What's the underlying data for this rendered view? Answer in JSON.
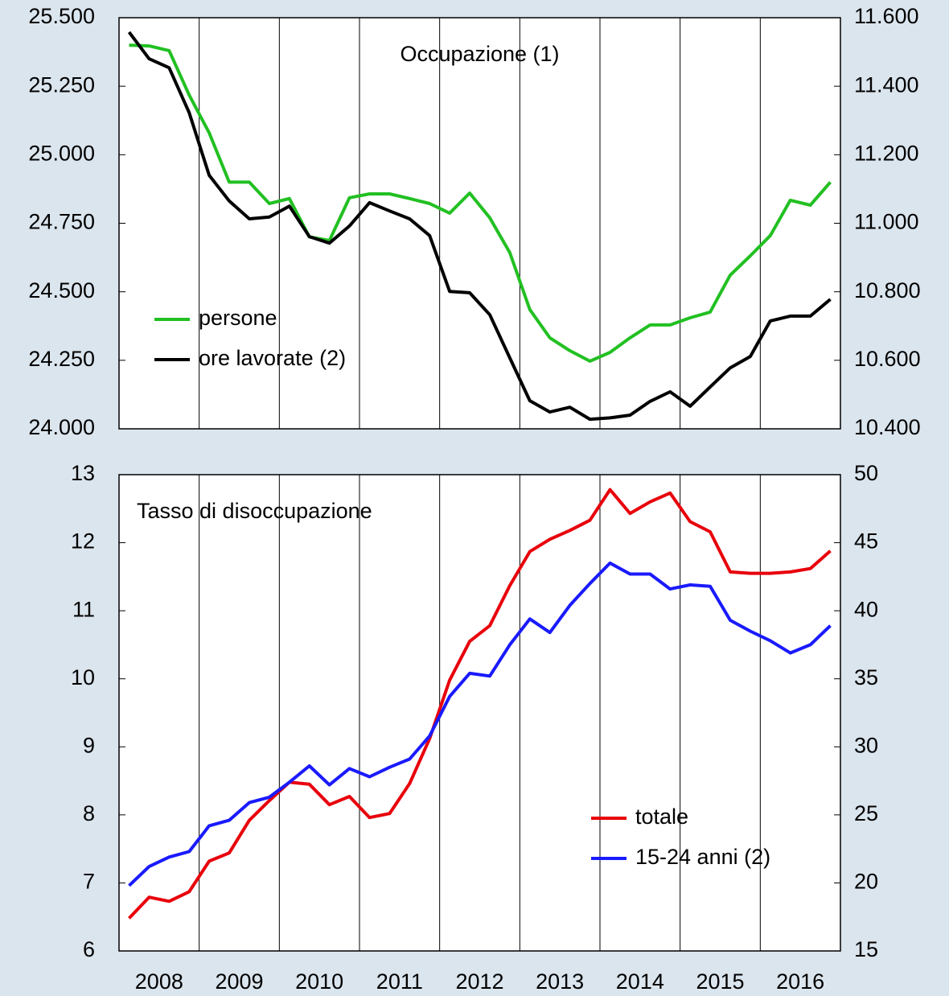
{
  "chart_data": [
    {
      "type": "line",
      "title": "Occupazione (1)",
      "title_loc": "center",
      "legend_loc": "lower left",
      "x": [
        2008.125,
        2008.375,
        2008.625,
        2008.875,
        2009.125,
        2009.375,
        2009.625,
        2009.875,
        2010.125,
        2010.375,
        2010.625,
        2010.875,
        2011.125,
        2011.375,
        2011.625,
        2011.875,
        2012.125,
        2012.375,
        2012.625,
        2012.875,
        2013.125,
        2013.375,
        2013.625,
        2013.875,
        2014.125,
        2014.375,
        2014.625,
        2014.875,
        2015.125,
        2015.375,
        2015.625,
        2015.875,
        2016.125,
        2016.375,
        2016.625,
        2016.875
      ],
      "xlim": [
        2008,
        2017
      ],
      "xgrid": [
        2009,
        2010,
        2011,
        2012,
        2013,
        2014,
        2015,
        2016
      ],
      "ylim": [
        24000,
        25500
      ],
      "yticks": [
        {
          "value": 24000,
          "label": "24.000"
        },
        {
          "value": 24250,
          "label": "24.250"
        },
        {
          "value": 24500,
          "label": "24.500"
        },
        {
          "value": 24750,
          "label": "24.750"
        },
        {
          "value": 25000,
          "label": "25.000"
        },
        {
          "value": 25250,
          "label": "25.250"
        },
        {
          "value": 25500,
          "label": "25.500"
        }
      ],
      "y2lim": [
        10400,
        11600
      ],
      "y2ticks": [
        {
          "value": 10400,
          "label": "10.400"
        },
        {
          "value": 10600,
          "label": "10.600"
        },
        {
          "value": 10800,
          "label": "10.800"
        },
        {
          "value": 11000,
          "label": "11.000"
        },
        {
          "value": 11200,
          "label": "11.200"
        },
        {
          "value": 11400,
          "label": "11.400"
        },
        {
          "value": 11600,
          "label": "11.600"
        }
      ],
      "series": [
        {
          "name": "persone",
          "color": "#22c022",
          "values": [
            25400,
            25397,
            25380,
            25218,
            25080,
            24900,
            24900,
            24822,
            24840,
            24700,
            24687,
            24843,
            24857,
            24857,
            24840,
            24822,
            24787,
            24860,
            24770,
            24643,
            24435,
            24332,
            24285,
            24247,
            24279,
            24332,
            24379,
            24379,
            24405,
            24426,
            24561,
            24631,
            24705,
            24834,
            24816,
            24900
          ]
        },
        {
          "name": "ore lavorate (2)",
          "color": "#000000",
          "axis": "y2",
          "values": [
            11558,
            11480,
            11454,
            11323,
            11140,
            11065,
            11013,
            11018,
            11050,
            10961,
            10942,
            10992,
            11060,
            11036,
            11013,
            10964,
            10801,
            10797,
            10733,
            10607,
            10482,
            10449,
            10463,
            10428,
            10432,
            10440,
            10480,
            10508,
            10466,
            10522,
            10578,
            10611,
            10715,
            10729,
            10729,
            10778
          ]
        }
      ]
    },
    {
      "type": "line",
      "title": "Tasso di disoccupazione",
      "title_loc": "left",
      "legend_loc": "lower right",
      "x": [
        2008.125,
        2008.375,
        2008.625,
        2008.875,
        2009.125,
        2009.375,
        2009.625,
        2009.875,
        2010.125,
        2010.375,
        2010.625,
        2010.875,
        2011.125,
        2011.375,
        2011.625,
        2011.875,
        2012.125,
        2012.375,
        2012.625,
        2012.875,
        2013.125,
        2013.375,
        2013.625,
        2013.875,
        2014.125,
        2014.375,
        2014.625,
        2014.875,
        2015.125,
        2015.375,
        2015.625,
        2015.875,
        2016.125,
        2016.375,
        2016.625,
        2016.875
      ],
      "xlim": [
        2008,
        2017
      ],
      "xgrid": [
        2009,
        2010,
        2011,
        2012,
        2013,
        2014,
        2015,
        2016
      ],
      "xticks": [
        {
          "value": 2008.5,
          "label": "2008"
        },
        {
          "value": 2009.5,
          "label": "2009"
        },
        {
          "value": 2010.5,
          "label": "2010"
        },
        {
          "value": 2011.5,
          "label": "2011"
        },
        {
          "value": 2012.5,
          "label": "2012"
        },
        {
          "value": 2013.5,
          "label": "2013"
        },
        {
          "value": 2014.5,
          "label": "2014"
        },
        {
          "value": 2015.5,
          "label": "2015"
        },
        {
          "value": 2016.5,
          "label": "2016"
        }
      ],
      "ylim": [
        6,
        13
      ],
      "yticks": [
        6,
        7,
        8,
        9,
        10,
        11,
        12,
        13
      ],
      "y2lim": [
        15,
        50
      ],
      "y2ticks": [
        15,
        20,
        25,
        30,
        35,
        40,
        45,
        50
      ],
      "series": [
        {
          "name": "totale",
          "color": "#e8000b",
          "values": [
            6.48,
            6.79,
            6.73,
            6.87,
            7.32,
            7.44,
            7.92,
            8.21,
            8.48,
            8.45,
            8.15,
            8.27,
            7.96,
            8.02,
            8.46,
            9.12,
            9.98,
            10.55,
            10.78,
            11.37,
            11.87,
            12.05,
            12.18,
            12.33,
            12.78,
            12.43,
            12.6,
            12.73,
            12.31,
            12.16,
            11.57,
            11.55,
            11.55,
            11.57,
            11.62,
            11.88
          ]
        },
        {
          "name": "15-24 anni (2)",
          "color": "#1a1aff",
          "axis": "y2",
          "values": [
            19.8,
            21.2,
            21.9,
            22.3,
            24.2,
            24.6,
            25.9,
            26.3,
            27.4,
            28.6,
            27.2,
            28.4,
            27.8,
            28.5,
            29.1,
            30.8,
            33.7,
            35.4,
            35.2,
            37.5,
            39.4,
            38.4,
            40.4,
            42.0,
            43.5,
            42.7,
            42.7,
            41.6,
            41.9,
            41.8,
            39.3,
            38.5,
            37.8,
            36.9,
            37.5,
            38.9
          ]
        }
      ]
    }
  ]
}
